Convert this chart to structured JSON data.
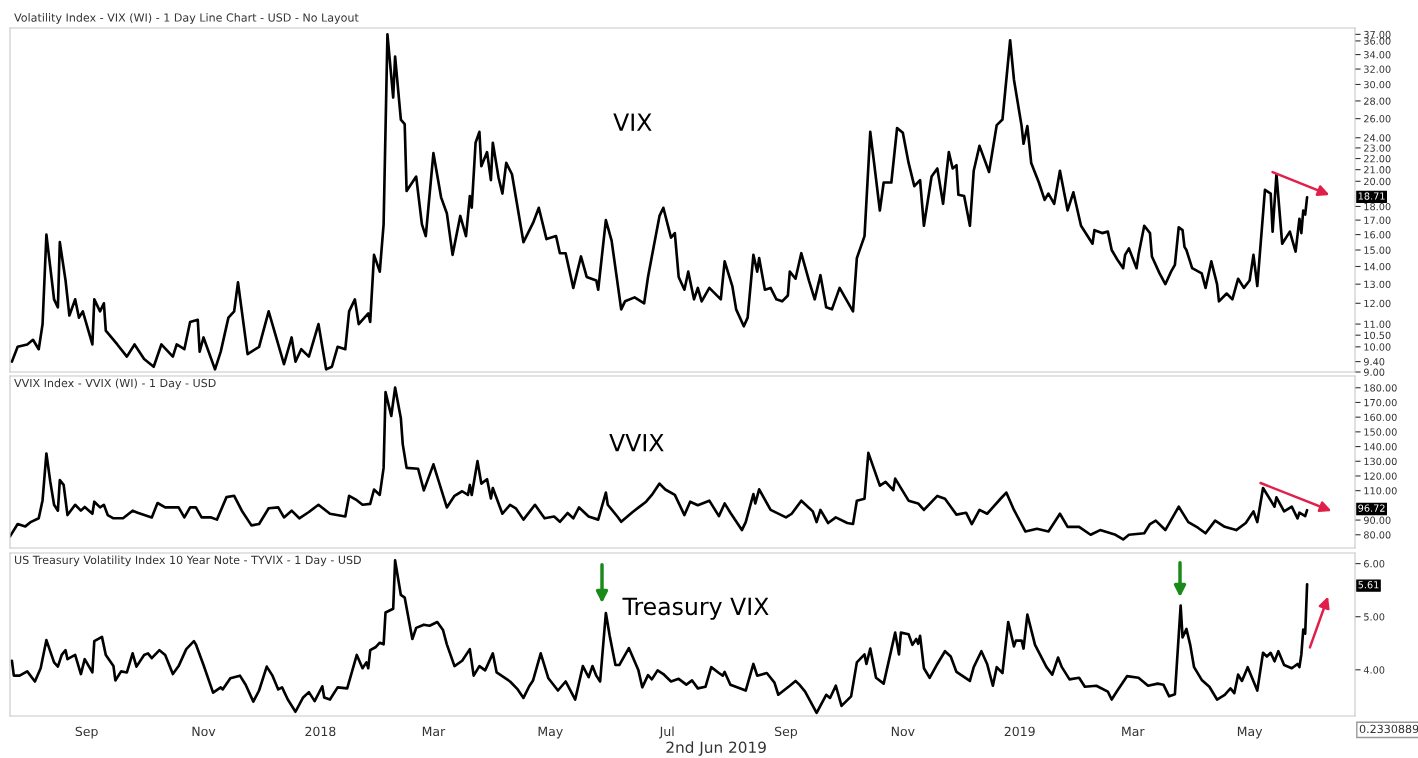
{
  "chart_data": [
    {
      "type": "line",
      "title": "Volatility Index - VIX (WI) - 1 Day Line Chart - USD - No Layout",
      "log": "y",
      "tick_labels": "y",
      "xlim": [
        "2017-07-23",
        "2019-06-25"
      ],
      "ylim": [
        9,
        38
      ],
      "yticks": [
        {
          "value": 9,
          "label": "9.00"
        },
        {
          "value": 9.4,
          "label": "9.40"
        },
        {
          "value": 10,
          "label": "10.00"
        },
        {
          "value": 10.5,
          "label": "10.50"
        },
        {
          "value": 11,
          "label": "11.00"
        },
        {
          "value": 12,
          "label": "12.00"
        },
        {
          "value": 13,
          "label": "13.00"
        },
        {
          "value": 14,
          "label": "14.00"
        },
        {
          "value": 15,
          "label": "15.00"
        },
        {
          "value": 16,
          "label": "16.00"
        },
        {
          "value": 17,
          "label": "17.00"
        },
        {
          "value": 18,
          "label": "18.00"
        },
        {
          "value": 20,
          "label": "20.00"
        },
        {
          "value": 21,
          "label": "21.00"
        },
        {
          "value": 22,
          "label": "22.00"
        },
        {
          "value": 23,
          "label": "23.00"
        },
        {
          "value": 24,
          "label": "24.00"
        },
        {
          "value": 26,
          "label": "26.00"
        },
        {
          "value": 28,
          "label": "28.00"
        },
        {
          "value": 30,
          "label": "30.00"
        },
        {
          "value": 32,
          "label": "32.00"
        },
        {
          "value": 34,
          "label": "34.00"
        },
        {
          "value": 36,
          "label": "36.00"
        },
        {
          "value": 37,
          "label": "37.00"
        }
      ],
      "annotations": [
        "VIX",
        "18.71"
      ],
      "x": [
        "2017-07-24",
        "2017-07-27",
        "2017-08-01",
        "2017-08-04",
        "2017-08-07",
        "2017-08-09",
        "2017-08-11",
        "2017-08-15",
        "2017-08-17",
        "2017-08-18",
        "2017-08-21",
        "2017-08-23",
        "2017-08-26",
        "2017-08-28",
        "2017-08-30",
        "2017-09-04",
        "2017-09-05",
        "2017-09-08",
        "2017-09-10",
        "2017-09-11",
        "2017-09-17",
        "2017-09-22",
        "2017-09-26",
        "2017-10-01",
        "2017-10-06",
        "2017-10-10",
        "2017-10-16",
        "2017-10-18",
        "2017-10-22",
        "2017-10-25",
        "2017-10-29",
        "2017-10-30",
        "2017-11-01",
        "2017-11-07",
        "2017-11-10",
        "2017-11-14",
        "2017-11-17",
        "2017-11-19",
        "2017-11-24",
        "2017-11-30",
        "2017-12-05",
        "2017-12-13",
        "2017-12-17",
        "2017-12-19",
        "2017-12-22",
        "2017-12-26",
        "2017-12-31",
        "2018-01-04",
        "2018-01-07",
        "2018-01-10",
        "2018-01-14",
        "2018-01-16",
        "2018-01-19",
        "2018-01-21",
        "2018-01-26",
        "2018-01-27",
        "2018-01-29",
        "2018-02-01",
        "2018-02-03",
        "2018-02-05",
        "2018-02-08",
        "2018-02-09",
        "2018-02-12",
        "2018-02-14",
        "2018-02-15",
        "2018-02-20",
        "2018-02-23",
        "2018-02-25",
        "2018-03-01",
        "2018-03-05",
        "2018-03-08",
        "2018-03-11",
        "2018-03-15",
        "2018-03-18",
        "2018-03-20",
        "2018-03-21",
        "2018-03-23",
        "2018-03-25",
        "2018-03-26",
        "2018-03-29",
        "2018-03-31",
        "2018-04-01",
        "2018-04-04",
        "2018-04-06",
        "2018-04-08",
        "2018-04-11",
        "2018-04-17",
        "2018-04-22",
        "2018-04-25",
        "2018-04-29",
        "2018-05-04",
        "2018-05-06",
        "2018-05-09",
        "2018-05-13",
        "2018-05-17",
        "2018-05-20",
        "2018-05-25",
        "2018-05-26",
        "2018-05-30",
        "2018-06-02",
        "2018-06-07",
        "2018-06-09",
        "2018-06-14",
        "2018-06-19",
        "2018-06-21",
        "2018-06-23",
        "2018-06-27",
        "2018-06-29",
        "2018-07-03",
        "2018-07-05",
        "2018-07-07",
        "2018-07-10",
        "2018-07-12",
        "2018-07-15",
        "2018-07-17",
        "2018-07-19",
        "2018-07-23",
        "2018-07-29",
        "2018-07-31",
        "2018-08-04",
        "2018-08-06",
        "2018-08-10",
        "2018-08-12",
        "2018-08-15",
        "2018-08-17",
        "2018-08-18",
        "2018-08-21",
        "2018-08-24",
        "2018-08-27",
        "2018-08-30",
        "2018-09-02",
        "2018-09-03",
        "2018-09-06",
        "2018-09-09",
        "2018-09-13",
        "2018-09-16",
        "2018-09-19",
        "2018-09-22",
        "2018-09-25",
        "2018-09-29",
        "2018-10-03",
        "2018-10-06",
        "2018-10-08",
        "2018-10-12",
        "2018-10-15",
        "2018-10-17",
        "2018-10-20",
        "2018-10-22",
        "2018-10-26",
        "2018-10-29",
        "2018-11-01",
        "2018-11-04",
        "2018-11-07",
        "2018-11-10",
        "2018-11-12",
        "2018-11-16",
        "2018-11-19",
        "2018-11-22",
        "2018-11-25",
        "2018-11-27",
        "2018-11-29",
        "2018-11-30",
        "2018-12-03",
        "2018-12-06",
        "2018-12-08",
        "2018-12-11",
        "2018-12-16",
        "2018-12-20",
        "2018-12-23",
        "2018-12-27",
        "2018-12-29",
        "2019-01-02",
        "2019-01-03",
        "2019-01-05",
        "2019-01-07",
        "2019-01-11",
        "2019-01-14",
        "2019-01-16",
        "2019-01-19",
        "2019-01-22",
        "2019-01-26",
        "2019-01-29",
        "2019-02-02",
        "2019-02-08",
        "2019-02-09",
        "2019-02-13",
        "2019-02-16",
        "2019-02-18",
        "2019-02-21",
        "2019-02-24",
        "2019-02-25",
        "2019-02-27",
        "2019-03-03",
        "2019-03-04",
        "2019-03-07",
        "2019-03-10",
        "2019-03-11",
        "2019-03-15",
        "2019-03-18",
        "2019-03-21",
        "2019-03-23",
        "2019-03-25",
        "2019-03-27",
        "2019-03-28",
        "2019-03-29",
        "2019-04-01",
        "2019-04-06",
        "2019-04-08",
        "2019-04-11",
        "2019-04-14",
        "2019-04-15",
        "2019-04-19",
        "2019-04-22",
        "2019-04-25",
        "2019-04-28",
        "2019-05-01",
        "2019-05-03",
        "2019-05-05",
        "2019-05-09",
        "2019-05-12",
        "2019-05-13",
        "2019-05-15",
        "2019-05-18",
        "2019-05-22",
        "2019-05-25",
        "2019-05-27",
        "2019-05-28",
        "2019-05-29",
        "2019-05-30",
        "2019-05-31"
      ],
      "series": [
        {
          "color": "#000000",
          "values": [
            9.4,
            10.0,
            10.1,
            10.3,
            9.9,
            11.0,
            16.0,
            12.2,
            11.8,
            15.5,
            13.2,
            11.4,
            12.2,
            11.3,
            11.6,
            10.1,
            12.2,
            11.6,
            12.0,
            10.7,
            10.1,
            9.6,
            10.1,
            9.5,
            9.2,
            10.1,
            9.6,
            10.1,
            9.9,
            11.1,
            11.2,
            9.8,
            10.4,
            9.1,
            9.8,
            11.3,
            11.6,
            13.1,
            9.7,
            10.0,
            11.6,
            9.3,
            10.4,
            9.4,
            9.9,
            9.6,
            11.0,
            9.1,
            9.2,
            10.0,
            9.9,
            11.6,
            12.2,
            11.0,
            11.5,
            11.1,
            14.7,
            13.7,
            16.7,
            37.0,
            28.4,
            33.7,
            25.9,
            25.4,
            19.2,
            20.4,
            16.7,
            15.9,
            22.5,
            18.7,
            17.5,
            14.7,
            17.3,
            15.9,
            18.8,
            17.9,
            23.5,
            24.6,
            21.3,
            22.6,
            20.1,
            23.5,
            20.3,
            19.0,
            21.6,
            20.6,
            15.5,
            16.8,
            17.9,
            15.7,
            15.9,
            14.8,
            14.8,
            12.8,
            14.6,
            13.4,
            13.2,
            12.7,
            17.0,
            15.6,
            11.7,
            12.1,
            12.3,
            12.0,
            13.4,
            14.6,
            17.3,
            17.9,
            15.8,
            16.1,
            13.4,
            12.7,
            13.7,
            12.2,
            12.8,
            12.1,
            12.8,
            12.2,
            14.3,
            12.9,
            11.7,
            10.9,
            11.3,
            14.7,
            13.7,
            14.5,
            12.7,
            12.8,
            12.2,
            12.1,
            12.4,
            13.7,
            13.3,
            14.8,
            13.2,
            12.2,
            13.5,
            11.8,
            11.7,
            12.8,
            12.1,
            11.6,
            14.5,
            15.9,
            24.6,
            21.6,
            17.7,
            19.9,
            19.9,
            25.0,
            24.5,
            21.6,
            19.6,
            20.1,
            16.6,
            20.4,
            21.1,
            18.2,
            22.6,
            21.1,
            21.4,
            18.9,
            18.8,
            16.6,
            20.9,
            23.2,
            20.8,
            25.3,
            25.9,
            36.1,
            30.6,
            25.2,
            23.4,
            25.2,
            21.6,
            19.9,
            18.5,
            19.0,
            18.2,
            20.9,
            17.7,
            19.1,
            16.6,
            15.4,
            16.3,
            16.1,
            16.2,
            15.0,
            14.4,
            13.9,
            14.7,
            15.1,
            13.9,
            14.7,
            16.6,
            16.1,
            14.6,
            13.6,
            13.0,
            13.7,
            14.1,
            16.5,
            16.3,
            15.2,
            15.0,
            13.9,
            13.6,
            12.8,
            14.3,
            13.0,
            12.1,
            12.5,
            12.2,
            13.3,
            12.8,
            13.2,
            14.7,
            12.9,
            19.3,
            19.0,
            16.2,
            20.6,
            15.4,
            16.2,
            14.9,
            17.1,
            16.1,
            17.7,
            17.4,
            18.71
          ]
        }
      ]
    },
    {
      "type": "line",
      "title": "VVIX Index - VVIX (WI) - 1 Day - USD",
      "tick_labels": "y",
      "xlim": [
        "2017-07-23",
        "2019-06-25"
      ],
      "ylim": [
        71,
        188
      ],
      "yticks": [
        {
          "value": 80,
          "label": "80.00"
        },
        {
          "value": 90,
          "label": "90.00"
        },
        {
          "value": 110,
          "label": "110.00"
        },
        {
          "value": 120,
          "label": "120.00"
        },
        {
          "value": 130,
          "label": "130.00"
        },
        {
          "value": 140,
          "label": "140.00"
        },
        {
          "value": 150,
          "label": "150.00"
        },
        {
          "value": 160,
          "label": "160.00"
        },
        {
          "value": 170,
          "label": "170.00"
        },
        {
          "value": 180,
          "label": "180.00"
        }
      ],
      "annotations": [
        "VVIX",
        "96.72"
      ],
      "x": [
        "2017-07-23",
        "2017-07-27",
        "2017-07-31",
        "2017-08-03",
        "2017-08-07",
        "2017-08-09",
        "2017-08-11",
        "2017-08-13",
        "2017-08-15",
        "2017-08-17",
        "2017-08-18",
        "2017-08-20",
        "2017-08-22",
        "2017-08-26",
        "2017-08-29",
        "2017-08-31",
        "2017-09-04",
        "2017-09-05",
        "2017-09-08",
        "2017-09-10",
        "2017-09-12",
        "2017-09-15",
        "2017-09-20",
        "2017-09-25",
        "2017-09-28",
        "2017-10-05",
        "2017-10-08",
        "2017-10-12",
        "2017-10-19",
        "2017-10-22",
        "2017-10-25",
        "2017-10-28",
        "2017-10-31",
        "2017-11-05",
        "2017-11-08",
        "2017-11-13",
        "2017-11-17",
        "2017-11-21",
        "2017-11-26",
        "2017-11-30",
        "2017-12-05",
        "2017-12-10",
        "2017-12-13",
        "2017-12-17",
        "2017-12-21",
        "2017-12-26",
        "2017-12-31",
        "2018-01-06",
        "2018-01-14",
        "2018-01-16",
        "2018-01-20",
        "2018-01-23",
        "2018-01-27",
        "2018-01-29",
        "2018-02-01",
        "2018-02-03",
        "2018-02-04",
        "2018-02-07",
        "2018-02-09",
        "2018-02-12",
        "2018-02-13",
        "2018-02-15",
        "2018-02-21",
        "2018-02-24",
        "2018-03-01",
        "2018-03-08",
        "2018-03-12",
        "2018-03-16",
        "2018-03-19",
        "2018-03-20",
        "2018-03-21",
        "2018-03-24",
        "2018-03-26",
        "2018-03-29",
        "2018-03-31",
        "2018-04-01",
        "2018-04-06",
        "2018-04-10",
        "2018-04-13",
        "2018-04-17",
        "2018-04-23",
        "2018-04-28",
        "2018-05-03",
        "2018-05-06",
        "2018-05-10",
        "2018-05-13",
        "2018-05-16",
        "2018-05-21",
        "2018-05-26",
        "2018-05-30",
        "2018-05-31",
        "2018-06-05",
        "2018-06-07",
        "2018-06-13",
        "2018-06-17",
        "2018-06-20",
        "2018-06-23",
        "2018-06-27",
        "2018-06-30",
        "2018-07-05",
        "2018-07-10",
        "2018-07-13",
        "2018-07-17",
        "2018-07-23",
        "2018-07-28",
        "2018-07-31",
        "2018-08-03",
        "2018-08-09",
        "2018-08-11",
        "2018-08-15",
        "2018-08-16",
        "2018-08-18",
        "2018-08-24",
        "2018-09-01",
        "2018-09-04",
        "2018-09-09",
        "2018-09-15",
        "2018-09-17",
        "2018-09-19",
        "2018-09-23",
        "2018-09-27",
        "2018-10-03",
        "2018-10-06",
        "2018-10-08",
        "2018-10-12",
        "2018-10-14",
        "2018-10-20",
        "2018-10-23",
        "2018-10-27",
        "2018-10-28",
        "2018-11-04",
        "2018-11-09",
        "2018-11-12",
        "2018-11-19",
        "2018-11-23",
        "2018-11-29",
        "2018-12-04",
        "2018-12-07",
        "2018-12-11",
        "2018-12-15",
        "2018-12-22",
        "2018-12-25",
        "2018-12-29",
        "2019-01-04",
        "2019-01-10",
        "2019-01-16",
        "2019-01-22",
        "2019-01-26",
        "2019-02-01",
        "2019-02-07",
        "2019-02-12",
        "2019-02-20",
        "2019-02-24",
        "2019-02-27",
        "2019-03-07",
        "2019-03-10",
        "2019-03-13",
        "2019-03-18",
        "2019-03-25",
        "2019-03-30",
        "2019-04-04",
        "2019-04-08",
        "2019-04-13",
        "2019-04-18",
        "2019-04-24",
        "2019-04-29",
        "2019-05-03",
        "2019-05-05",
        "2019-05-08",
        "2019-05-14",
        "2019-05-15",
        "2019-05-19",
        "2019-05-23",
        "2019-05-26",
        "2019-05-27",
        "2019-05-30",
        "2019-05-31"
      ],
      "series": [
        {
          "color": "#000000",
          "values": [
            78.9,
            87.3,
            85.7,
            88.8,
            91.2,
            103.5,
            135.3,
            116.3,
            100.4,
            96.4,
            117.2,
            113.9,
            93.4,
            100.4,
            96.4,
            98.9,
            94.3,
            102.5,
            98.6,
            100.4,
            93.4,
            91.2,
            91.2,
            96.4,
            94.8,
            91.8,
            101.6,
            98.6,
            98.6,
            91.8,
            98.6,
            98.6,
            91.8,
            91.8,
            90.3,
            105.6,
            106.5,
            96.4,
            86.4,
            87.3,
            98.0,
            98.6,
            91.8,
            96.4,
            91.2,
            95.5,
            100.4,
            94.3,
            92.4,
            106.5,
            103.5,
            100.4,
            101.0,
            110.8,
            107.1,
            125.5,
            177.0,
            160.8,
            180.1,
            159.2,
            141.5,
            125.5,
            124.9,
            110.2,
            127.9,
            98.6,
            106.5,
            109.6,
            107.1,
            113.9,
            107.1,
            130.1,
            114.8,
            117.8,
            104.7,
            111.8,
            94.3,
            100.4,
            98.0,
            90.3,
            100.4,
            91.2,
            92.4,
            88.8,
            94.8,
            91.2,
            98.6,
            92.4,
            90.3,
            108.7,
            100.4,
            92.4,
            88.8,
            95.5,
            99.5,
            102.5,
            107.1,
            114.8,
            110.8,
            107.1,
            93.4,
            102.5,
            100.1,
            103.2,
            92.7,
            101.3,
            95.0,
            83.2,
            88.6,
            107.7,
            101.3,
            110.9,
            96.9,
            91.8,
            94.3,
            103.2,
            95.9,
            88.6,
            96.9,
            88.0,
            91.8,
            88.0,
            87.3,
            103.2,
            104.5,
            135.7,
            113.4,
            116.0,
            110.3,
            118.2,
            103.2,
            101.3,
            96.9,
            106.4,
            104.5,
            93.7,
            95.0,
            87.3,
            96.9,
            94.3,
            104.5,
            108.7,
            96.9,
            82.2,
            84.1,
            82.2,
            94.3,
            85.4,
            85.4,
            80.0,
            83.2,
            80.0,
            76.8,
            80.0,
            81.0,
            87.3,
            89.6,
            83.2,
            99.1,
            88.6,
            84.8,
            81.0,
            89.6,
            85.4,
            83.2,
            88.0,
            95.9,
            88.6,
            111.8,
            99.1,
            105.5,
            95.9,
            99.1,
            91.1,
            95.0,
            92.7,
            96.72
          ]
        }
      ]
    },
    {
      "type": "line",
      "title": "US Treasury Volatility Index 10 Year Note - TYVIX - 1 Day - USD",
      "xlim": [
        "2017-07-23",
        "2019-06-25"
      ],
      "ylim": [
        3.13,
        6.2
      ],
      "xticks": [
        {
          "value": "2017-09-01",
          "label": "Sep"
        },
        {
          "value": "2017-11-01",
          "label": "Nov"
        },
        {
          "value": "2018-01-01",
          "label": "2018"
        },
        {
          "value": "2018-03-01",
          "label": "Mar"
        },
        {
          "value": "2018-05-01",
          "label": "May"
        },
        {
          "value": "2018-07-01",
          "label": "Jul"
        },
        {
          "value": "2018-09-01",
          "label": "Sep"
        },
        {
          "value": "2018-11-01",
          "label": "Nov"
        },
        {
          "value": "2019-01-01",
          "label": "2019"
        },
        {
          "value": "2019-03-01",
          "label": "Mar"
        },
        {
          "value": "2019-05-01",
          "label": "May"
        }
      ],
      "yticks": [
        {
          "value": 4,
          "label": "4.00"
        },
        {
          "value": 5,
          "label": "5.00"
        },
        {
          "value": 6,
          "label": "6.00"
        }
      ],
      "annotations": [
        "Treasury VIX",
        "5.61",
        "2nd Jun 2019",
        "0.2330889"
      ],
      "x": [
        "2017-07-24",
        "2017-07-25",
        "2017-07-28",
        "2017-08-01",
        "2017-08-05",
        "2017-08-08",
        "2017-08-11",
        "2017-08-15",
        "2017-08-17",
        "2017-08-19",
        "2017-08-21",
        "2017-08-22",
        "2017-08-26",
        "2017-08-29",
        "2017-08-31",
        "2017-09-04",
        "2017-09-05",
        "2017-09-09",
        "2017-09-11",
        "2017-09-15",
        "2017-09-16",
        "2017-09-19",
        "2017-09-22",
        "2017-09-25",
        "2017-09-27",
        "2017-10-01",
        "2017-10-03",
        "2017-10-05",
        "2017-10-09",
        "2017-10-12",
        "2017-10-16",
        "2017-10-19",
        "2017-10-23",
        "2017-10-27",
        "2017-10-28",
        "2017-11-01",
        "2017-11-06",
        "2017-11-10",
        "2017-11-11",
        "2017-11-15",
        "2017-11-20",
        "2017-11-23",
        "2017-11-27",
        "2017-11-30",
        "2017-12-04",
        "2017-12-07",
        "2017-12-10",
        "2017-12-12",
        "2017-12-15",
        "2017-12-19",
        "2017-12-23",
        "2017-12-26",
        "2017-12-29",
        "2018-01-02",
        "2018-01-03",
        "2018-01-06",
        "2018-01-10",
        "2018-01-15",
        "2018-01-20",
        "2018-01-23",
        "2018-01-25",
        "2018-01-26",
        "2018-01-27",
        "2018-01-30",
        "2018-02-01",
        "2018-02-03",
        "2018-02-04",
        "2018-02-08",
        "2018-02-09",
        "2018-02-12",
        "2018-02-14",
        "2018-02-18",
        "2018-02-20",
        "2018-02-24",
        "2018-02-27",
        "2018-03-03",
        "2018-03-06",
        "2018-03-08",
        "2018-03-12",
        "2018-03-16",
        "2018-03-20",
        "2018-03-22",
        "2018-03-25",
        "2018-03-28",
        "2018-04-01",
        "2018-04-03",
        "2018-04-10",
        "2018-04-14",
        "2018-04-17",
        "2018-04-20",
        "2018-04-22",
        "2018-04-26",
        "2018-04-30",
        "2018-05-05",
        "2018-05-09",
        "2018-05-14",
        "2018-05-18",
        "2018-05-21",
        "2018-05-23",
        "2018-05-25",
        "2018-05-27",
        "2018-05-30",
        "2018-06-01",
        "2018-06-04",
        "2018-06-06",
        "2018-06-11",
        "2018-06-16",
        "2018-06-18",
        "2018-06-21",
        "2018-06-23",
        "2018-06-26",
        "2018-06-29",
        "2018-07-03",
        "2018-07-07",
        "2018-07-11",
        "2018-07-14",
        "2018-07-17",
        "2018-07-21",
        "2018-07-24",
        "2018-07-28",
        "2018-07-30",
        "2018-07-31",
        "2018-08-03",
        "2018-08-11",
        "2018-08-15",
        "2018-08-17",
        "2018-08-22",
        "2018-08-26",
        "2018-08-28",
        "2018-09-03",
        "2018-09-06",
        "2018-09-08",
        "2018-09-11",
        "2018-09-17",
        "2018-09-22",
        "2018-09-24",
        "2018-09-27",
        "2018-09-30",
        "2018-10-05",
        "2018-10-08",
        "2018-10-12",
        "2018-10-13",
        "2018-10-15",
        "2018-10-18",
        "2018-10-22",
        "2018-10-28",
        "2018-10-30",
        "2018-10-31",
        "2018-11-04",
        "2018-11-06",
        "2018-11-08",
        "2018-11-09",
        "2018-11-10",
        "2018-11-12",
        "2018-11-15",
        "2018-11-19",
        "2018-11-23",
        "2018-11-26",
        "2018-11-29",
        "2018-12-06",
        "2018-12-08",
        "2018-12-12",
        "2018-12-15",
        "2018-12-18",
        "2018-12-20",
        "2018-12-23",
        "2018-12-26",
        "2018-12-29",
        "2018-12-30",
        "2019-01-02",
        "2019-01-03",
        "2019-01-05",
        "2019-01-09",
        "2019-01-15",
        "2019-01-18",
        "2019-01-21",
        "2019-01-23",
        "2019-01-27",
        "2019-02-01",
        "2019-02-04",
        "2019-02-10",
        "2019-02-16",
        "2019-02-18",
        "2019-02-21",
        "2019-02-26",
        "2019-03-04",
        "2019-03-09",
        "2019-03-14",
        "2019-03-17",
        "2019-03-20",
        "2019-03-23",
        "2019-03-26",
        "2019-03-27",
        "2019-03-29",
        "2019-03-31",
        "2019-04-02",
        "2019-04-06",
        "2019-04-10",
        "2019-04-14",
        "2019-04-18",
        "2019-04-21",
        "2019-04-23",
        "2019-04-25",
        "2019-04-27",
        "2019-04-30",
        "2019-05-05",
        "2019-05-08",
        "2019-05-10",
        "2019-05-12",
        "2019-05-14",
        "2019-05-16",
        "2019-05-19",
        "2019-05-23",
        "2019-05-26",
        "2019-05-27",
        "2019-05-28",
        "2019-05-29",
        "2019-05-30",
        "2019-05-31"
      ],
      "series": [
        {
          "color": "#000000",
          "values": [
            4.17,
            3.89,
            3.89,
            3.97,
            3.78,
            4.03,
            4.56,
            4.14,
            4.06,
            4.28,
            4.37,
            4.2,
            4.28,
            3.92,
            4.2,
            3.95,
            4.54,
            4.62,
            4.28,
            4.07,
            3.8,
            3.97,
            3.95,
            4.31,
            4.06,
            4.28,
            4.31,
            4.22,
            4.37,
            4.28,
            3.92,
            4.07,
            4.39,
            4.54,
            4.48,
            4.09,
            3.57,
            3.67,
            3.63,
            3.84,
            3.89,
            3.72,
            3.4,
            3.61,
            4.06,
            3.89,
            3.63,
            3.67,
            3.44,
            3.21,
            3.48,
            3.58,
            3.41,
            3.69,
            3.48,
            3.44,
            3.67,
            3.65,
            4.28,
            4.03,
            4.14,
            4.03,
            4.37,
            4.43,
            4.51,
            4.48,
            5.08,
            5.15,
            6.06,
            5.41,
            5.36,
            4.58,
            4.79,
            4.85,
            4.83,
            4.9,
            4.75,
            4.48,
            4.07,
            4.17,
            4.39,
            3.89,
            4.07,
            3.99,
            4.31,
            3.95,
            3.78,
            3.63,
            3.47,
            3.69,
            3.8,
            4.31,
            3.84,
            3.61,
            3.78,
            3.44,
            4.07,
            3.86,
            4.07,
            3.89,
            3.78,
            5.07,
            4.64,
            4.09,
            4.09,
            4.41,
            3.99,
            3.67,
            3.9,
            3.82,
            3.99,
            3.92,
            3.78,
            3.83,
            3.72,
            3.8,
            3.65,
            3.68,
            4.05,
            3.94,
            3.89,
            3.96,
            3.72,
            3.61,
            4.11,
            3.89,
            3.94,
            3.76,
            3.53,
            3.7,
            3.79,
            3.72,
            3.59,
            3.19,
            3.53,
            3.47,
            3.7,
            3.32,
            3.5,
            4.14,
            4.29,
            4.11,
            4.4,
            3.85,
            3.74,
            4.7,
            4.29,
            4.7,
            4.67,
            4.47,
            4.58,
            4.49,
            4.64,
            4.03,
            3.85,
            4.11,
            4.35,
            4.25,
            3.96,
            3.79,
            4.05,
            4.35,
            4.11,
            3.7,
            4.05,
            3.94,
            4.9,
            4.44,
            4.55,
            4.55,
            4.4,
            5.04,
            4.47,
            4.05,
            3.91,
            4.23,
            4.05,
            3.82,
            3.85,
            3.68,
            3.7,
            3.59,
            3.44,
            3.61,
            3.88,
            3.85,
            3.7,
            3.74,
            3.72,
            3.5,
            3.54,
            5.21,
            4.61,
            4.77,
            4.47,
            4.05,
            3.81,
            3.68,
            3.44,
            3.53,
            3.65,
            3.56,
            3.91,
            3.79,
            4.05,
            3.61,
            4.32,
            4.25,
            4.32,
            4.16,
            4.35,
            4.09,
            4.03,
            4.11,
            4.05,
            4.29,
            4.76,
            4.68,
            5.61
          ]
        }
      ]
    }
  ]
}
